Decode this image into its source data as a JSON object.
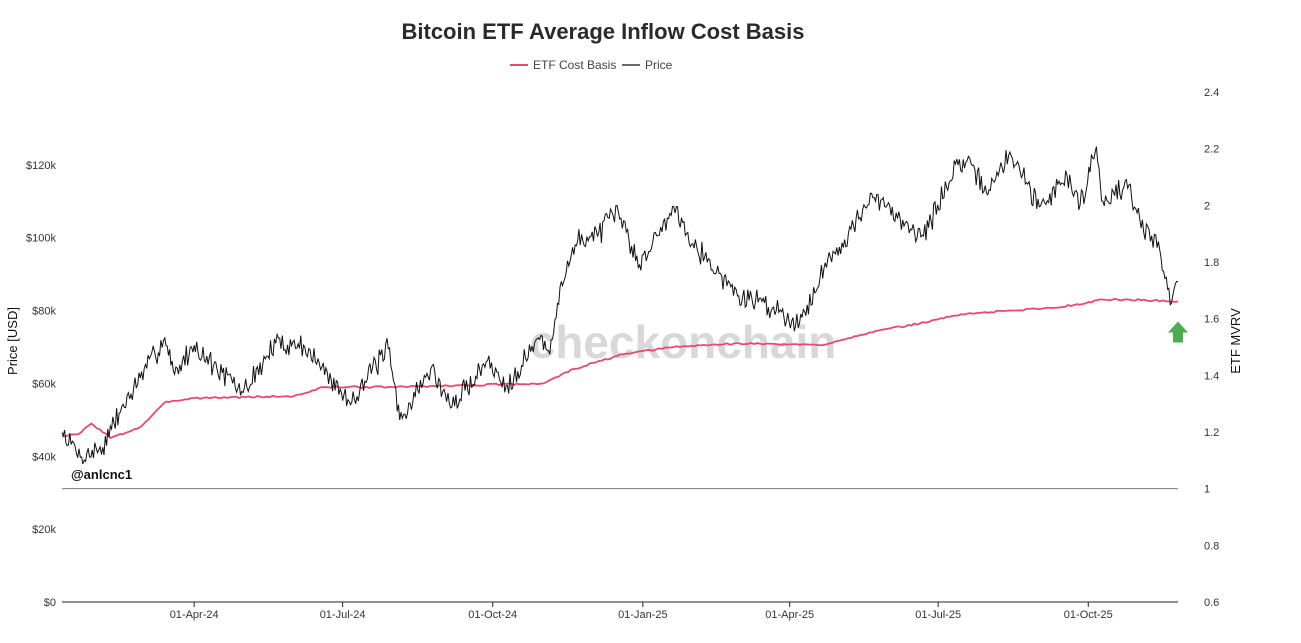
{
  "chart_data": {
    "type": "line",
    "title": "Bitcoin ETF Average Inflow Cost Basis",
    "legend": {
      "placement": "top-center",
      "entries": [
        {
          "name": "ETF Cost Basis",
          "color": "#e84a6e"
        },
        {
          "name": "Price",
          "color": "#111111"
        }
      ]
    },
    "y_left": {
      "label": "Price [USD]",
      "range": [
        0,
        140000
      ],
      "ticks": [
        0,
        20000,
        40000,
        60000,
        80000,
        100000,
        120000
      ],
      "tick_labels": [
        "$0",
        "$20k",
        "$40k",
        "$60k",
        "$80k",
        "$100k",
        "$120k"
      ]
    },
    "y_right": {
      "label": "ETF MVRV",
      "range": [
        0.6,
        2.4
      ],
      "ticks": [
        0.6,
        0.8,
        1,
        1.2,
        1.4,
        1.6,
        1.8,
        2,
        2.2,
        2.4
      ],
      "tick_labels": [
        "0.6",
        "0.8",
        "1",
        "1.2",
        "1.4",
        "1.6",
        "1.8",
        "2",
        "2.2",
        "2.4"
      ]
    },
    "x_axis": {
      "range": [
        "2024-01-11",
        "2025-11-25"
      ],
      "ticks": [
        "2024-04-01",
        "2024-07-01",
        "2024-10-01",
        "2025-01-01",
        "2025-04-01",
        "2025-07-01",
        "2025-10-01"
      ],
      "tick_labels": [
        "01-Apr-24",
        "01-Jul-24",
        "01-Oct-24",
        "01-Jan-25",
        "01-Apr-25",
        "01-Jul-25",
        "01-Oct-25"
      ]
    },
    "reference_line": {
      "axis": "y_right",
      "value": 1
    },
    "series": [
      {
        "name": "Price",
        "axis": "y_left",
        "color": "#111111",
        "points": [
          [
            "2024-01-11",
            46500
          ],
          [
            "2024-01-23",
            39800
          ],
          [
            "2024-02-05",
            42500
          ],
          [
            "2024-02-15",
            51800
          ],
          [
            "2024-02-28",
            61500
          ],
          [
            "2024-03-14",
            72500
          ],
          [
            "2024-03-20",
            62500
          ],
          [
            "2024-04-01",
            70500
          ],
          [
            "2024-04-15",
            64000
          ],
          [
            "2024-05-01",
            57500
          ],
          [
            "2024-05-21",
            71000
          ],
          [
            "2024-06-07",
            70500
          ],
          [
            "2024-06-24",
            61000
          ],
          [
            "2024-07-05",
            55000
          ],
          [
            "2024-07-29",
            69500
          ],
          [
            "2024-08-05",
            50000
          ],
          [
            "2024-08-24",
            64000
          ],
          [
            "2024-09-06",
            53500
          ],
          [
            "2024-09-27",
            66000
          ],
          [
            "2024-10-10",
            59500
          ],
          [
            "2024-10-29",
            72500
          ],
          [
            "2024-11-05",
            68000
          ],
          [
            "2024-11-12",
            88000
          ],
          [
            "2024-11-22",
            99000
          ],
          [
            "2024-12-05",
            101500
          ],
          [
            "2024-12-17",
            107000
          ],
          [
            "2024-12-30",
            92500
          ],
          [
            "2025-01-20",
            108500
          ],
          [
            "2025-02-03",
            97500
          ],
          [
            "2025-02-28",
            84000
          ],
          [
            "2025-03-15",
            82500
          ],
          [
            "2025-04-07",
            76500
          ],
          [
            "2025-04-22",
            91500
          ],
          [
            "2025-05-22",
            111000
          ],
          [
            "2025-06-22",
            100500
          ],
          [
            "2025-07-14",
            121500
          ],
          [
            "2025-08-02",
            113000
          ],
          [
            "2025-08-14",
            123500
          ],
          [
            "2025-09-01",
            108500
          ],
          [
            "2025-09-18",
            117000
          ],
          [
            "2025-09-26",
            109000
          ],
          [
            "2025-10-06",
            125000
          ],
          [
            "2025-10-10",
            110000
          ],
          [
            "2025-10-26",
            114500
          ],
          [
            "2025-11-04",
            101500
          ],
          [
            "2025-11-13",
            99000
          ],
          [
            "2025-11-21",
            82000
          ],
          [
            "2025-11-25",
            88000
          ]
        ]
      },
      {
        "name": "ETF Cost Basis",
        "axis": "y_left",
        "color": "#e84a6e",
        "points": [
          [
            "2024-01-11",
            45500
          ],
          [
            "2024-01-21",
            46000
          ],
          [
            "2024-01-29",
            49000
          ],
          [
            "2024-02-10",
            45000
          ],
          [
            "2024-02-28",
            48000
          ],
          [
            "2024-03-15",
            55000
          ],
          [
            "2024-04-01",
            56000
          ],
          [
            "2024-06-01",
            56500
          ],
          [
            "2024-06-20",
            59000
          ],
          [
            "2024-08-01",
            59000
          ],
          [
            "2024-09-15",
            59500
          ],
          [
            "2024-11-01",
            60000
          ],
          [
            "2024-11-20",
            64000
          ],
          [
            "2024-12-20",
            68000
          ],
          [
            "2025-01-20",
            70000
          ],
          [
            "2025-03-01",
            71000
          ],
          [
            "2025-04-20",
            70500
          ],
          [
            "2025-05-20",
            74000
          ],
          [
            "2025-06-20",
            76500
          ],
          [
            "2025-07-15",
            79000
          ],
          [
            "2025-08-15",
            80000
          ],
          [
            "2025-09-15",
            81000
          ],
          [
            "2025-10-10",
            83000
          ],
          [
            "2025-10-26",
            83000
          ],
          [
            "2025-11-25",
            82500
          ]
        ]
      }
    ],
    "annotations": [
      {
        "type": "arrow-up",
        "date": "2025-11-25",
        "value": 77000,
        "color": "#4aad4f"
      }
    ],
    "watermark": "checkonchain",
    "credit": "@anlcnc1",
    "grid": false
  }
}
